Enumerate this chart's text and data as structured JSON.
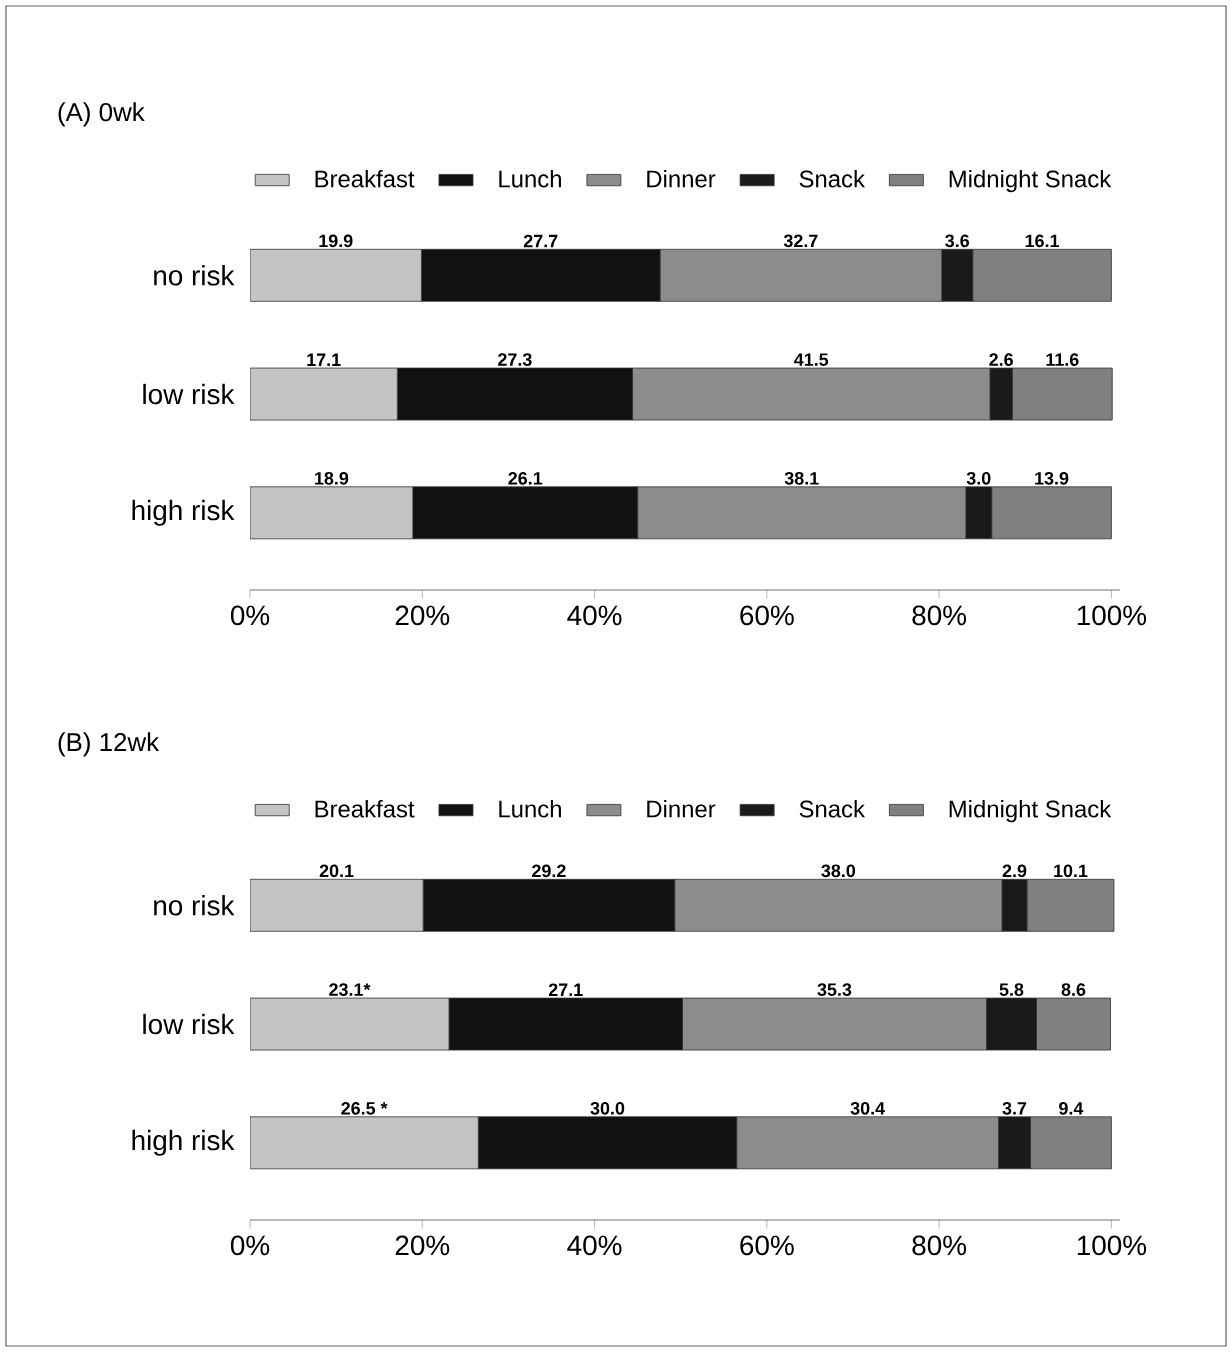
{
  "chart_data": [
    {
      "type": "bar",
      "title": "(A) 0wk",
      "orientation": "horizontal",
      "stacked": true,
      "legend": "top",
      "categories": [
        "no risk",
        "low risk",
        "high risk"
      ],
      "xlim": [
        0,
        101
      ],
      "xticks": [
        {
          "value": 0,
          "label": "0%"
        },
        {
          "value": 20,
          "label": "20%"
        },
        {
          "value": 40,
          "label": "40%"
        },
        {
          "value": 60,
          "label": "60%"
        },
        {
          "value": 80,
          "label": "80%"
        },
        {
          "value": 100,
          "label": "100%"
        }
      ],
      "series": [
        {
          "name": "Breakfast",
          "color": "#c4c4c4",
          "values": [
            19.9,
            17.1,
            18.9
          ],
          "value_labels": [
            "19.9",
            "17.1",
            "18.9"
          ]
        },
        {
          "name": "Lunch",
          "color": "#111111",
          "values": [
            27.7,
            27.3,
            26.1
          ],
          "value_labels": [
            "27.7",
            "27.3",
            "26.1"
          ]
        },
        {
          "name": "Dinner",
          "color": "#8c8c8c",
          "values": [
            32.7,
            41.5,
            38.1
          ],
          "value_labels": [
            "32.7",
            "41.5",
            "38.1"
          ]
        },
        {
          "name": "Snack",
          "color": "#1a1a1a",
          "values": [
            3.6,
            2.6,
            3.0
          ],
          "value_labels": [
            "3.6",
            "2.6",
            "3.0"
          ]
        },
        {
          "name": "Midnight Snack",
          "color": "#808080",
          "values": [
            16.1,
            11.6,
            13.9
          ],
          "value_labels": [
            "16.1",
            "11.6",
            "13.9"
          ]
        }
      ]
    },
    {
      "type": "bar",
      "title": "(B) 12wk",
      "orientation": "horizontal",
      "stacked": true,
      "legend": "top",
      "categories": [
        "no risk",
        "low risk",
        "high risk"
      ],
      "xlim": [
        0,
        101
      ],
      "xticks": [
        {
          "value": 0,
          "label": "0%"
        },
        {
          "value": 20,
          "label": "20%"
        },
        {
          "value": 40,
          "label": "40%"
        },
        {
          "value": 60,
          "label": "60%"
        },
        {
          "value": 80,
          "label": "80%"
        },
        {
          "value": 100,
          "label": "100%"
        }
      ],
      "series": [
        {
          "name": "Breakfast",
          "color": "#c4c4c4",
          "values": [
            20.1,
            23.1,
            26.5
          ],
          "value_labels": [
            "20.1",
            "23.1*",
            "26.5 *"
          ]
        },
        {
          "name": "Lunch",
          "color": "#111111",
          "values": [
            29.2,
            27.1,
            30.0
          ],
          "value_labels": [
            "29.2",
            "27.1",
            "30.0"
          ]
        },
        {
          "name": "Dinner",
          "color": "#8c8c8c",
          "values": [
            38.0,
            35.3,
            30.4
          ],
          "value_labels": [
            "38.0",
            "35.3",
            "30.4"
          ]
        },
        {
          "name": "Snack",
          "color": "#1a1a1a",
          "values": [
            2.9,
            5.8,
            3.7
          ],
          "value_labels": [
            "2.9",
            "5.8",
            "3.7"
          ]
        },
        {
          "name": "Midnight Snack",
          "color": "#808080",
          "values": [
            10.1,
            8.6,
            9.4
          ],
          "value_labels": [
            "10.1",
            "8.6",
            "9.4"
          ]
        }
      ]
    }
  ]
}
